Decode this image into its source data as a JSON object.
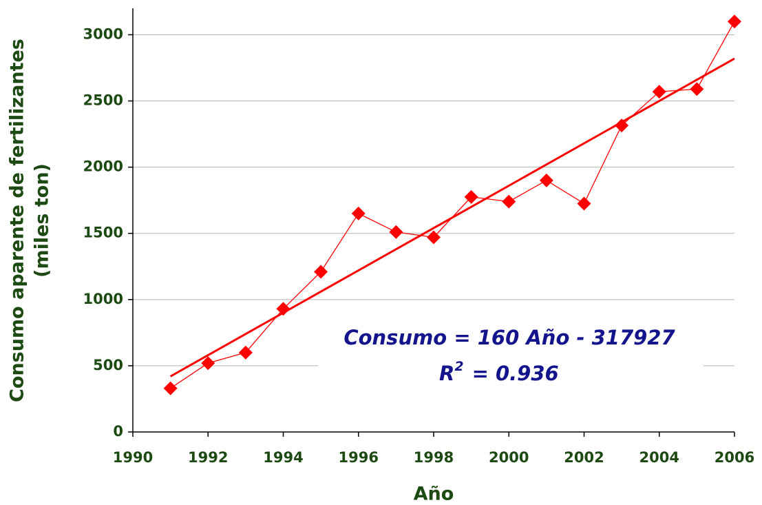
{
  "chart_data": {
    "type": "line",
    "xlabel": "Año",
    "ylabel": [
      "Consumo aparente de fertilizantes",
      "(miles ton)"
    ],
    "x": [
      1991,
      1992,
      1993,
      1994,
      1995,
      1996,
      1997,
      1998,
      1999,
      2000,
      2001,
      2002,
      2003,
      2004,
      2005,
      2006
    ],
    "values": [
      330,
      520,
      600,
      930,
      1210,
      1650,
      1510,
      1470,
      1775,
      1740,
      1900,
      1725,
      2315,
      2570,
      2590,
      3100
    ],
    "color": "#ff0000",
    "trendline": {
      "x": [
        1991,
        2006
      ],
      "values": [
        420,
        2820
      ],
      "color": "#ff0000"
    },
    "annotation": {
      "equation": "Consumo = 160 Año - 317927",
      "r2_label": "R",
      "r2_exponent": "2",
      "r2_value": "= 0.936"
    },
    "xlim": [
      1990,
      2006
    ],
    "xticks": [
      1990,
      1992,
      1994,
      1996,
      1998,
      2000,
      2002,
      2004,
      2006
    ],
    "ylim": [
      0,
      3200
    ],
    "yticks": [
      0,
      500,
      1000,
      1500,
      2000,
      2500,
      3000
    ],
    "grid": true
  }
}
